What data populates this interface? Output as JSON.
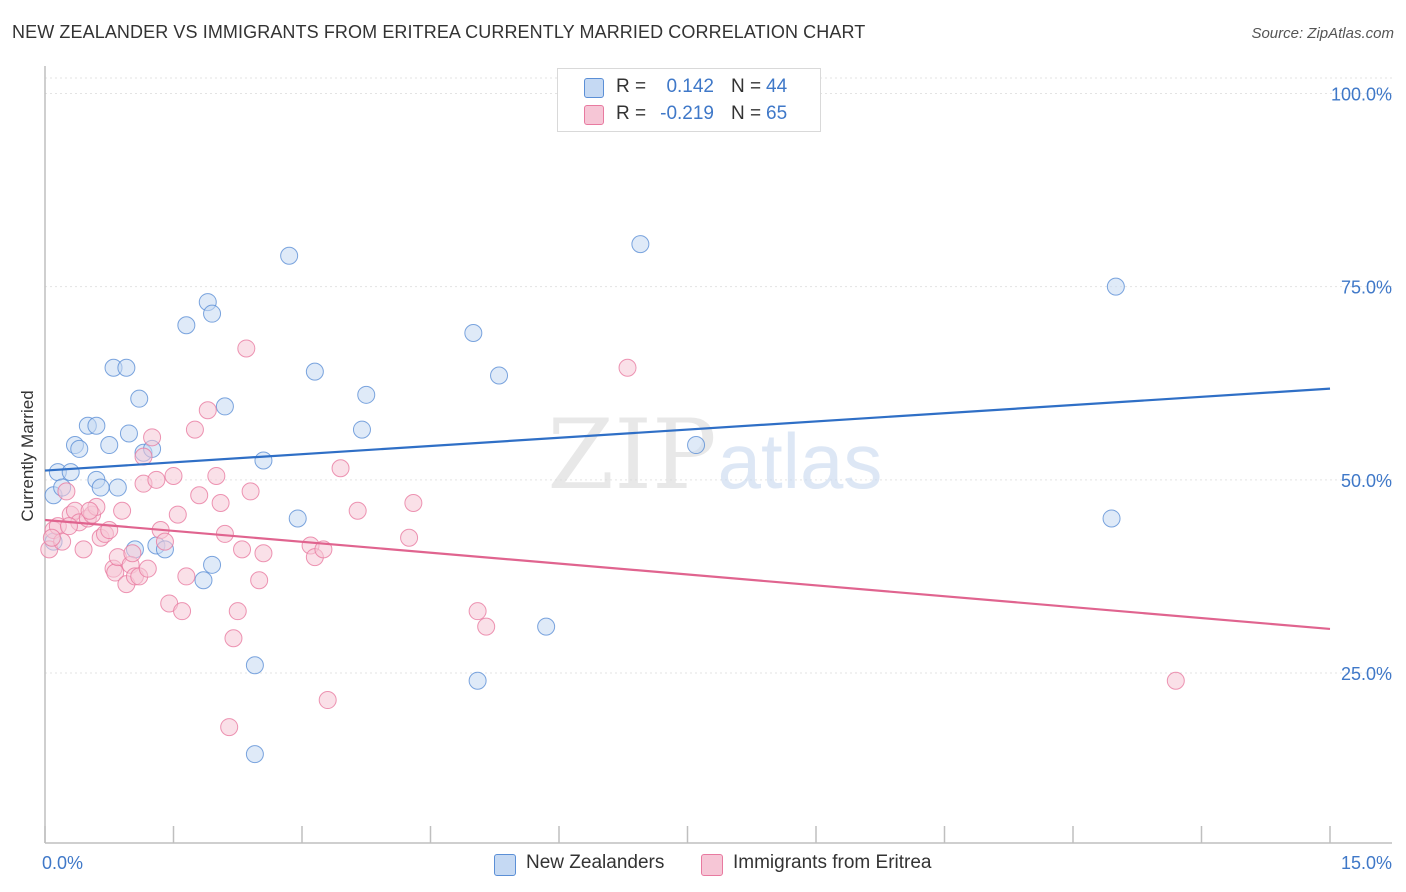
{
  "title": "NEW ZEALANDER VS IMMIGRANTS FROM ERITREA CURRENTLY MARRIED CORRELATION CHART",
  "source": "Source: ZipAtlas.com",
  "watermark": {
    "zip": "ZIP",
    "atlas": "atlas"
  },
  "colors": {
    "blue": "#5b8fd6",
    "blue_fill": "#c5d9f3",
    "blue_line": "#2f6fc6",
    "pink": "#e87aa0",
    "pink_fill": "#f6c6d6",
    "pink_line": "#e0648f",
    "axis_text": "#3f78c8",
    "grid": "#e3e3e3"
  },
  "legend_top": {
    "rows": [
      {
        "r_label": "R =",
        "r_value": "0.142",
        "n_label": "N =",
        "n_value": "44"
      },
      {
        "r_label": "R =",
        "r_value": "-0.219",
        "n_label": "N =",
        "n_value": "65"
      }
    ]
  },
  "legend_bottom": {
    "items": [
      {
        "label": "New Zealanders"
      },
      {
        "label": "Immigrants from Eritrea"
      }
    ]
  },
  "chart_data": {
    "type": "scatter",
    "title": "NEW ZEALANDER VS IMMIGRANTS FROM ERITREA CURRENTLY MARRIED CORRELATION CHART",
    "xlabel": "",
    "ylabel": "Currently Married",
    "xlim": [
      0,
      15
    ],
    "ylim": [
      3,
      102
    ],
    "x_tick_labels": [
      "0.0%",
      "15.0%"
    ],
    "y_ticks": [
      25,
      50,
      75,
      100
    ],
    "y_tick_labels": [
      "25.0%",
      "50.0%",
      "75.0%",
      "100.0%"
    ],
    "grid": true,
    "legend_placement": "top-center and bottom",
    "series": [
      {
        "name": "New Zealanders",
        "color": "#5b8fd6",
        "r": 0.142,
        "n": 44,
        "trend": {
          "x": [
            0,
            15
          ],
          "y": [
            51.2,
            61.8
          ]
        },
        "points": [
          [
            0.1,
            48.0
          ],
          [
            0.15,
            51.0
          ],
          [
            0.2,
            49.0
          ],
          [
            0.3,
            51.0
          ],
          [
            0.35,
            54.5
          ],
          [
            0.4,
            54.0
          ],
          [
            0.5,
            57.0
          ],
          [
            0.6,
            57.0
          ],
          [
            0.6,
            50.0
          ],
          [
            0.65,
            49.0
          ],
          [
            0.75,
            54.5
          ],
          [
            0.8,
            64.5
          ],
          [
            0.85,
            49.0
          ],
          [
            0.95,
            64.5
          ],
          [
            0.98,
            56.0
          ],
          [
            1.05,
            41.0
          ],
          [
            1.1,
            60.5
          ],
          [
            1.15,
            53.5
          ],
          [
            1.25,
            54.0
          ],
          [
            1.3,
            41.5
          ],
          [
            1.4,
            41.0
          ],
          [
            1.65,
            70.0
          ],
          [
            1.85,
            37.0
          ],
          [
            1.9,
            73.0
          ],
          [
            1.95,
            71.5
          ],
          [
            1.95,
            39.0
          ],
          [
            2.1,
            59.5
          ],
          [
            2.45,
            14.5
          ],
          [
            2.45,
            26.0
          ],
          [
            2.55,
            52.5
          ],
          [
            2.85,
            79.0
          ],
          [
            2.95,
            45.0
          ],
          [
            3.15,
            64.0
          ],
          [
            3.7,
            56.5
          ],
          [
            3.75,
            61.0
          ],
          [
            5.0,
            69.0
          ],
          [
            5.05,
            24.0
          ],
          [
            5.3,
            63.5
          ],
          [
            5.85,
            31.0
          ],
          [
            6.95,
            80.5
          ],
          [
            7.6,
            54.5
          ],
          [
            12.45,
            45.0
          ],
          [
            12.5,
            75.0
          ],
          [
            0.1,
            42.0
          ]
        ]
      },
      {
        "name": "Immigrants from Eritrea",
        "color": "#e87aa0",
        "r": -0.219,
        "n": 65,
        "trend": {
          "x": [
            0,
            15
          ],
          "y": [
            44.8,
            30.7
          ]
        },
        "points": [
          [
            0.05,
            41.0
          ],
          [
            0.1,
            43.5
          ],
          [
            0.15,
            44.0
          ],
          [
            0.2,
            42.0
          ],
          [
            0.25,
            48.5
          ],
          [
            0.3,
            45.5
          ],
          [
            0.35,
            46.0
          ],
          [
            0.4,
            44.5
          ],
          [
            0.45,
            41.0
          ],
          [
            0.5,
            45.0
          ],
          [
            0.55,
            45.5
          ],
          [
            0.6,
            46.5
          ],
          [
            0.65,
            42.5
          ],
          [
            0.7,
            43.0
          ],
          [
            0.75,
            43.5
          ],
          [
            0.8,
            38.5
          ],
          [
            0.82,
            38.0
          ],
          [
            0.85,
            40.0
          ],
          [
            0.9,
            46.0
          ],
          [
            0.95,
            36.5
          ],
          [
            1.0,
            39.0
          ],
          [
            1.05,
            37.5
          ],
          [
            1.1,
            37.5
          ],
          [
            1.15,
            49.5
          ],
          [
            1.15,
            53.0
          ],
          [
            1.2,
            38.5
          ],
          [
            1.25,
            55.5
          ],
          [
            1.3,
            50.0
          ],
          [
            1.35,
            43.5
          ],
          [
            1.4,
            42.0
          ],
          [
            1.45,
            34.0
          ],
          [
            1.5,
            50.5
          ],
          [
            1.55,
            45.5
          ],
          [
            1.6,
            33.0
          ],
          [
            1.65,
            37.5
          ],
          [
            1.75,
            56.5
          ],
          [
            1.8,
            48.0
          ],
          [
            1.9,
            59.0
          ],
          [
            2.0,
            50.5
          ],
          [
            2.05,
            47.0
          ],
          [
            2.1,
            43.0
          ],
          [
            2.15,
            18.0
          ],
          [
            2.2,
            29.5
          ],
          [
            2.25,
            33.0
          ],
          [
            2.35,
            67.0
          ],
          [
            2.4,
            48.5
          ],
          [
            2.5,
            37.0
          ],
          [
            2.55,
            40.5
          ],
          [
            3.1,
            41.5
          ],
          [
            3.15,
            40.0
          ],
          [
            3.25,
            41.0
          ],
          [
            3.3,
            21.5
          ],
          [
            3.45,
            51.5
          ],
          [
            3.65,
            46.0
          ],
          [
            4.25,
            42.5
          ],
          [
            4.3,
            47.0
          ],
          [
            5.05,
            33.0
          ],
          [
            5.15,
            31.0
          ],
          [
            6.8,
            64.5
          ],
          [
            13.2,
            24.0
          ],
          [
            0.08,
            42.5
          ],
          [
            0.28,
            44.0
          ],
          [
            0.52,
            46.0
          ],
          [
            1.02,
            40.5
          ],
          [
            2.3,
            41.0
          ]
        ]
      }
    ]
  }
}
